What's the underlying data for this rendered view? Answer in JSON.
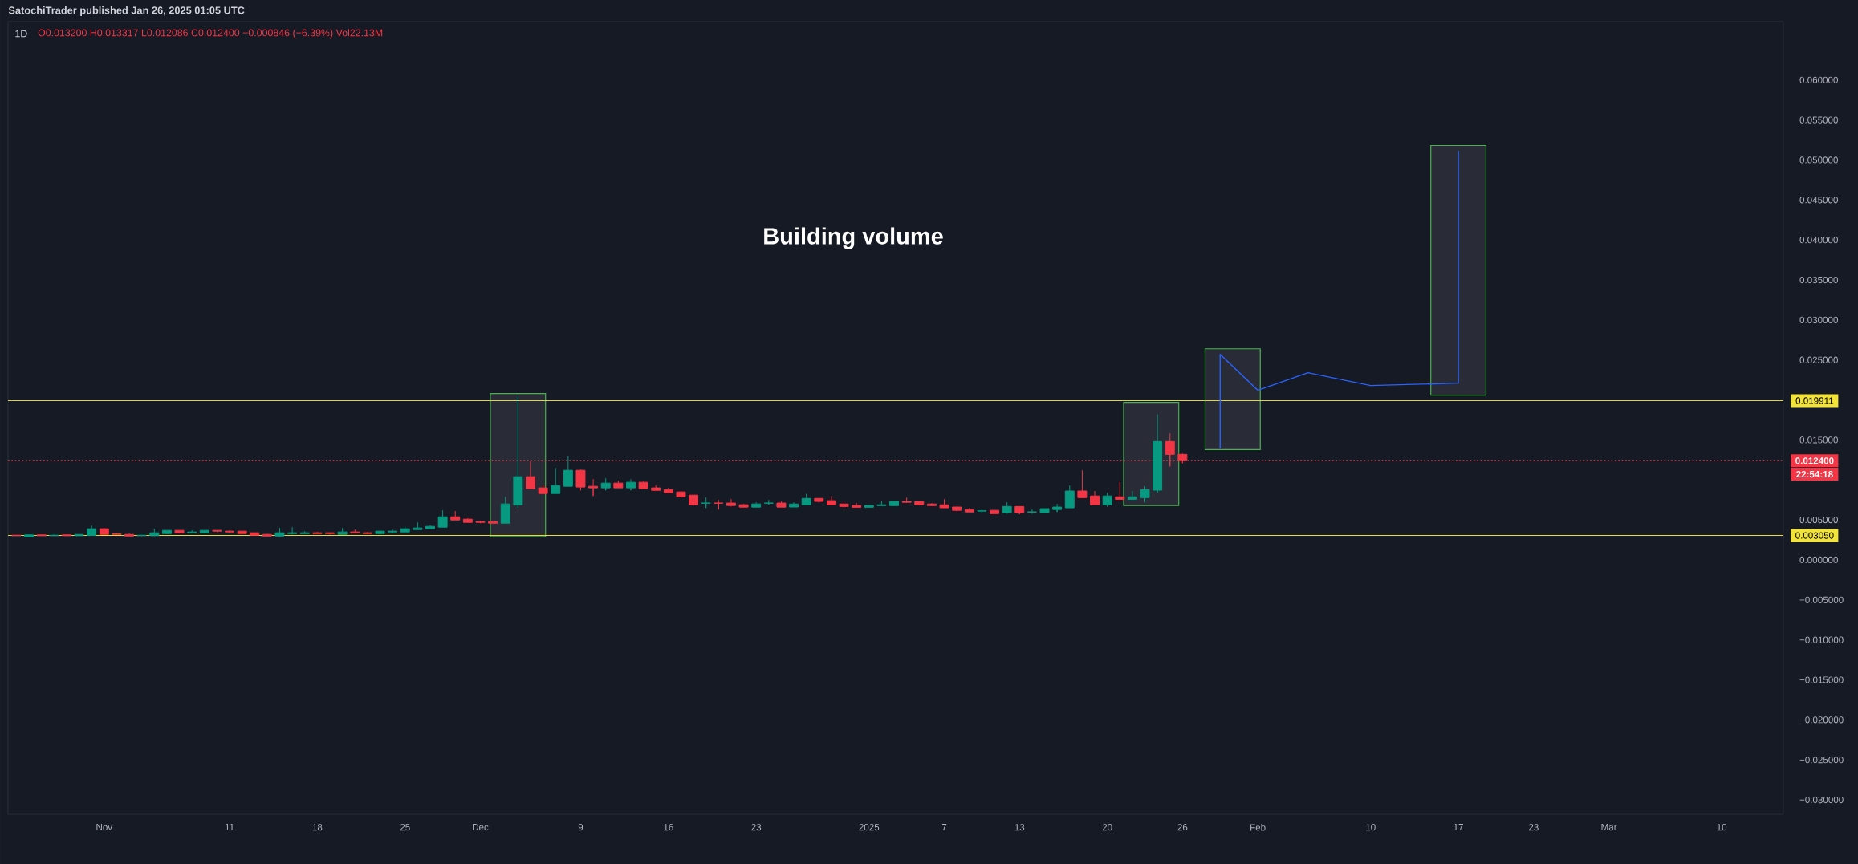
{
  "chart_data": {
    "type": "candlestick",
    "title": "1D",
    "annotations": [
      "SatochiTrader published Jan 26, 2025 01:05 UTC",
      "O0.013200 H0.013317 L0.012086 C0.012400 −0.000846 (−6.39%) Vol22.13M",
      "Building volume",
      "22:54:18"
    ],
    "x": [
      "2024-10-25",
      "2024-10-26",
      "2024-10-27",
      "2024-10-28",
      "2024-10-29",
      "2024-10-30",
      "2024-10-31",
      "2024-11-01",
      "2024-11-02",
      "2024-11-03",
      "2024-11-04",
      "2024-11-05",
      "2024-11-06",
      "2024-11-07",
      "2024-11-08",
      "2024-11-09",
      "2024-11-10",
      "2024-11-11",
      "2024-11-12",
      "2024-11-13",
      "2024-11-14",
      "2024-11-15",
      "2024-11-16",
      "2024-11-17",
      "2024-11-18",
      "2024-11-19",
      "2024-11-20",
      "2024-11-21",
      "2024-11-22",
      "2024-11-23",
      "2024-11-24",
      "2024-11-25",
      "2024-11-26",
      "2024-11-27",
      "2024-11-28",
      "2024-11-29",
      "2024-11-30",
      "2024-12-01",
      "2024-12-02",
      "2024-12-03",
      "2024-12-04",
      "2024-12-05",
      "2024-12-06",
      "2024-12-07",
      "2024-12-08",
      "2024-12-09",
      "2024-12-10",
      "2024-12-11",
      "2024-12-12",
      "2024-12-13",
      "2024-12-14",
      "2024-12-15",
      "2024-12-16",
      "2024-12-17",
      "2024-12-18",
      "2024-12-19",
      "2024-12-20",
      "2024-12-21",
      "2024-12-22",
      "2024-12-23",
      "2024-12-24",
      "2024-12-25",
      "2024-12-26",
      "2024-12-27",
      "2024-12-28",
      "2024-12-29",
      "2024-12-30",
      "2024-12-31",
      "2025-01-01",
      "2025-01-02",
      "2025-01-03",
      "2025-01-04",
      "2025-01-05",
      "2025-01-06",
      "2025-01-07",
      "2025-01-08",
      "2025-01-09",
      "2025-01-10",
      "2025-01-11",
      "2025-01-12",
      "2025-01-13",
      "2025-01-14",
      "2025-01-15",
      "2025-01-16",
      "2025-01-17",
      "2025-01-18",
      "2025-01-19",
      "2025-01-20",
      "2025-01-21",
      "2025-01-22",
      "2025-01-23",
      "2025-01-24",
      "2025-01-25",
      "2025-01-26"
    ],
    "ohlc": [
      [
        0.00308,
        0.00309,
        0.00302,
        0.00302
      ],
      [
        0.00288,
        0.00318,
        0.00288,
        0.00312
      ],
      [
        0.00312,
        0.00318,
        0.00302,
        0.00302
      ],
      [
        0.00302,
        0.00318,
        0.00302,
        0.00308
      ],
      [
        0.00312,
        0.00318,
        0.00302,
        0.00302
      ],
      [
        0.00302,
        0.00318,
        0.00302,
        0.00318
      ],
      [
        0.00305,
        0.00429,
        0.00305,
        0.00389
      ],
      [
        0.00389,
        0.00399,
        0.00318,
        0.00318
      ],
      [
        0.00328,
        0.00339,
        0.00318,
        0.00318
      ],
      [
        0.00318,
        0.00328,
        0.00298,
        0.00298
      ],
      [
        0.00302,
        0.00308,
        0.00302,
        0.00308
      ],
      [
        0.00302,
        0.00389,
        0.00302,
        0.00339
      ],
      [
        0.00328,
        0.00369,
        0.00328,
        0.00369
      ],
      [
        0.00369,
        0.00369,
        0.00339,
        0.00339
      ],
      [
        0.00339,
        0.00369,
        0.00339,
        0.00349
      ],
      [
        0.00339,
        0.00369,
        0.00339,
        0.00369
      ],
      [
        0.00369,
        0.00369,
        0.00349,
        0.00359
      ],
      [
        0.00359,
        0.00369,
        0.00339,
        0.00349
      ],
      [
        0.00359,
        0.00359,
        0.00328,
        0.00328
      ],
      [
        0.00339,
        0.00339,
        0.00308,
        0.00308
      ],
      [
        0.00318,
        0.00328,
        0.00298,
        0.00298
      ],
      [
        0.00298,
        0.00399,
        0.00288,
        0.00339
      ],
      [
        0.00328,
        0.00409,
        0.00318,
        0.00339
      ],
      [
        0.00328,
        0.00359,
        0.00328,
        0.00339
      ],
      [
        0.00339,
        0.00349,
        0.00328,
        0.00328
      ],
      [
        0.00339,
        0.00339,
        0.00318,
        0.00328
      ],
      [
        0.00318,
        0.00399,
        0.00318,
        0.00349
      ],
      [
        0.00349,
        0.00379,
        0.00339,
        0.00339
      ],
      [
        0.00339,
        0.00349,
        0.00328,
        0.00328
      ],
      [
        0.00328,
        0.00359,
        0.00328,
        0.00359
      ],
      [
        0.00349,
        0.00379,
        0.00339,
        0.00359
      ],
      [
        0.00349,
        0.00419,
        0.00349,
        0.00389
      ],
      [
        0.00379,
        0.00469,
        0.00379,
        0.00399
      ],
      [
        0.00389,
        0.00429,
        0.00389,
        0.00419
      ],
      [
        0.00409,
        0.0062,
        0.00409,
        0.00539
      ],
      [
        0.00539,
        0.0061,
        0.00499,
        0.00499
      ],
      [
        0.00509,
        0.00519,
        0.00469,
        0.00469
      ],
      [
        0.00479,
        0.00489,
        0.00459,
        0.00469
      ],
      [
        0.00479,
        0.00479,
        0.00459,
        0.00459
      ],
      [
        0.00459,
        0.0079,
        0.00459,
        0.007
      ],
      [
        0.0069,
        0.02045,
        0.0065,
        0.01041
      ],
      [
        0.01041,
        0.01232,
        0.00891,
        0.00891
      ],
      [
        0.00901,
        0.00941,
        0.0083,
        0.0083
      ],
      [
        0.0083,
        0.01152,
        0.0083,
        0.00931
      ],
      [
        0.00921,
        0.01302,
        0.00921,
        0.01121
      ],
      [
        0.01121,
        0.01131,
        0.0087,
        0.00911
      ],
      [
        0.00921,
        0.01011,
        0.008,
        0.00901
      ],
      [
        0.00901,
        0.01021,
        0.0087,
        0.00961
      ],
      [
        0.00961,
        0.00991,
        0.00901,
        0.00901
      ],
      [
        0.00901,
        0.01011,
        0.0087,
        0.00971
      ],
      [
        0.00971,
        0.00981,
        0.00891,
        0.00891
      ],
      [
        0.00901,
        0.00931,
        0.0087,
        0.0087
      ],
      [
        0.0088,
        0.00901,
        0.0084,
        0.0084
      ],
      [
        0.0085,
        0.0086,
        0.0078,
        0.0079
      ],
      [
        0.0081,
        0.0081,
        0.0068,
        0.0069
      ],
      [
        0.00709,
        0.0078,
        0.0065,
        0.00711
      ],
      [
        0.00711,
        0.0075,
        0.0063,
        0.00709
      ],
      [
        0.00711,
        0.0076,
        0.0067,
        0.0068
      ],
      [
        0.0069,
        0.007,
        0.0066,
        0.0066
      ],
      [
        0.0066,
        0.0072,
        0.0066,
        0.007
      ],
      [
        0.00709,
        0.0075,
        0.0069,
        0.00711
      ],
      [
        0.00711,
        0.0073,
        0.0066,
        0.0066
      ],
      [
        0.00661,
        0.0072,
        0.00661,
        0.00699
      ],
      [
        0.00689,
        0.00827,
        0.00689,
        0.00769
      ],
      [
        0.00769,
        0.00769,
        0.0072,
        0.00731
      ],
      [
        0.00741,
        0.008,
        0.00689,
        0.00689
      ],
      [
        0.00699,
        0.00731,
        0.00658,
        0.00668
      ],
      [
        0.00682,
        0.0071,
        0.00658,
        0.00658
      ],
      [
        0.00658,
        0.00689,
        0.00658,
        0.00682
      ],
      [
        0.00679,
        0.00741,
        0.00679,
        0.00689
      ],
      [
        0.00679,
        0.00731,
        0.00679,
        0.00731
      ],
      [
        0.00731,
        0.00779,
        0.0072,
        0.0072
      ],
      [
        0.00731,
        0.00731,
        0.00689,
        0.00689
      ],
      [
        0.00699,
        0.0071,
        0.00679,
        0.00679
      ],
      [
        0.00689,
        0.00758,
        0.00651,
        0.00651
      ],
      [
        0.00661,
        0.00668,
        0.00609,
        0.0062
      ],
      [
        0.0063,
        0.00648,
        0.00599,
        0.00599
      ],
      [
        0.00611,
        0.0063,
        0.00589,
        0.00613
      ],
      [
        0.0062,
        0.0062,
        0.00578,
        0.00578
      ],
      [
        0.00589,
        0.0072,
        0.00578,
        0.00668
      ],
      [
        0.00668,
        0.00668,
        0.00571,
        0.00589
      ],
      [
        0.00598,
        0.0063,
        0.00578,
        0.00601
      ],
      [
        0.00589,
        0.00641,
        0.00589,
        0.00641
      ],
      [
        0.0063,
        0.00699,
        0.00599,
        0.00661
      ],
      [
        0.00651,
        0.00931,
        0.00651,
        0.00862
      ],
      [
        0.00862,
        0.01122,
        0.00779,
        0.00779
      ],
      [
        0.008,
        0.00862,
        0.00689,
        0.00689
      ],
      [
        0.00689,
        0.00841,
        0.00668,
        0.008
      ],
      [
        0.00789,
        0.00976,
        0.00758,
        0.00758
      ],
      [
        0.00758,
        0.00862,
        0.00758,
        0.00789
      ],
      [
        0.00779,
        0.00921,
        0.0072,
        0.00879
      ],
      [
        0.00872,
        0.0182,
        0.00841,
        0.01481
      ],
      [
        0.01481,
        0.01582,
        0.0117,
        0.0132
      ],
      [
        0.0132,
        0.013317,
        0.012086,
        0.0124
      ]
    ],
    "colors": [
      "#f23645",
      "#089981",
      "#f23645",
      "#089981",
      "#f23645",
      "#089981",
      "#089981",
      "#f23645",
      "#f23645",
      "#f23645",
      "#089981",
      "#089981",
      "#089981",
      "#f23645",
      "#089981",
      "#089981",
      "#f23645",
      "#f23645",
      "#f23645",
      "#f23645",
      "#f23645",
      "#089981",
      "#089981",
      "#089981",
      "#f23645",
      "#f23645",
      "#089981",
      "#f23645",
      "#f23645",
      "#089981",
      "#089981",
      "#089981",
      "#089981",
      "#089981",
      "#089981",
      "#f23645",
      "#f23645",
      "#f23645",
      "#f23645",
      "#089981",
      "#089981",
      "#f23645",
      "#f23645",
      "#089981",
      "#089981",
      "#f23645",
      "#f23645",
      "#089981",
      "#f23645",
      "#089981",
      "#f23645",
      "#f23645",
      "#f23645",
      "#f23645",
      "#f23645",
      "#089981",
      "#f23645",
      "#f23645",
      "#f23645",
      "#089981",
      "#089981",
      "#f23645",
      "#089981",
      "#089981",
      "#f23645",
      "#f23645",
      "#f23645",
      "#f23645",
      "#089981",
      "#089981",
      "#089981",
      "#f23645",
      "#f23645",
      "#f23645",
      "#f23645",
      "#f23645",
      "#f23645",
      "#089981",
      "#f23645",
      "#089981",
      "#f23645",
      "#089981",
      "#089981",
      "#089981",
      "#089981",
      "#f23645",
      "#f23645",
      "#089981",
      "#f23645",
      "#089981",
      "#089981",
      "#089981",
      "#f23645",
      "#f23645"
    ],
    "series": [
      {
        "type": "bar",
        "color": "#4caf50",
        "x": [
          "2024-12-04",
          "2025-01-23T12:00",
          "2025-01-30",
          "2025-02-17"
        ],
        "base": [
          0.0029,
          0.0068,
          0.0138,
          0.0206
        ],
        "values": [
          0.0179,
          0.0129,
          0.0126,
          0.0312
        ]
      },
      {
        "type": "line",
        "color": "#2962ff",
        "x": [
          "2025-01-29",
          "2025-01-29",
          "2025-02-01",
          "2025-02-05",
          "2025-02-10",
          "2025-02-17",
          "2025-02-17"
        ],
        "values": [
          0.014,
          0.0257,
          0.0212,
          0.0234,
          0.0218,
          0.0221,
          0.0511
        ]
      }
    ],
    "xlim": [
      "2024-10-24T08:00",
      "2025-03-14T22:00"
    ],
    "xticks": [
      {
        "value": "2024-11-01",
        "label": "Nov"
      },
      {
        "value": "2024-11-11",
        "label": "11"
      },
      {
        "value": "2024-11-18",
        "label": "18"
      },
      {
        "value": "2024-11-25",
        "label": "25"
      },
      {
        "value": "2024-12-01",
        "label": "Dec"
      },
      {
        "value": "2024-12-09",
        "label": "9"
      },
      {
        "value": "2024-12-16",
        "label": "16"
      },
      {
        "value": "2024-12-23",
        "label": "23"
      },
      {
        "value": "2025-01-01",
        "label": "2025"
      },
      {
        "value": "2025-01-07",
        "label": "7"
      },
      {
        "value": "2025-01-13",
        "label": "13"
      },
      {
        "value": "2025-01-20",
        "label": "20"
      },
      {
        "value": "2025-01-26",
        "label": "26"
      },
      {
        "value": "2025-02-01",
        "label": "Feb"
      },
      {
        "value": "2025-02-10",
        "label": "10"
      },
      {
        "value": "2025-02-17",
        "label": "17"
      },
      {
        "value": "2025-02-23",
        "label": "23"
      },
      {
        "value": "2025-03-01",
        "label": "Mar"
      },
      {
        "value": "2025-03-10",
        "label": "10"
      }
    ],
    "ylim": [
      -0.0318,
      0.0673
    ],
    "yticks": [
      {
        "value": 0.06,
        "label": "0.060000"
      },
      {
        "value": 0.055,
        "label": "0.055000"
      },
      {
        "value": 0.05,
        "label": "0.050000"
      },
      {
        "value": 0.045,
        "label": "0.045000"
      },
      {
        "value": 0.04,
        "label": "0.040000"
      },
      {
        "value": 0.035,
        "label": "0.035000"
      },
      {
        "value": 0.03,
        "label": "0.030000"
      },
      {
        "value": 0.025,
        "label": "0.025000"
      },
      {
        "value": 0.015,
        "label": "0.015000"
      },
      {
        "value": 0.005,
        "label": "0.005000"
      },
      {
        "value": 0,
        "label": "0.000000"
      },
      {
        "value": -0.005,
        "label": "−0.005000"
      },
      {
        "value": -0.01,
        "label": "−0.010000"
      },
      {
        "value": -0.015,
        "label": "−0.015000"
      },
      {
        "value": -0.02,
        "label": "−0.020000"
      },
      {
        "value": -0.025,
        "label": "−0.025000"
      },
      {
        "value": -0.03,
        "label": "−0.030000"
      }
    ],
    "ref_lines": [
      {
        "axis": "y",
        "value": 0.019911,
        "label": "0.019911",
        "color": "#f2e33a"
      },
      {
        "axis": "y",
        "value": 0.00305,
        "label": "0.003050",
        "color": "#f2e33a"
      },
      {
        "axis": "y",
        "value": 0.0124,
        "label": "0.012400",
        "color": "#f23645",
        "line_style": "dotted"
      }
    ]
  }
}
